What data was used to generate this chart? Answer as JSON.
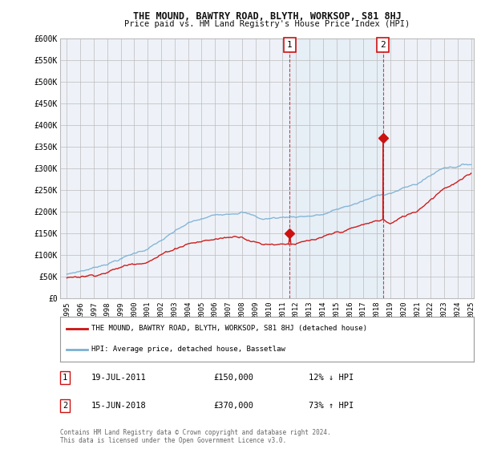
{
  "title": "THE MOUND, BAWTRY ROAD, BLYTH, WORKSOP, S81 8HJ",
  "subtitle": "Price paid vs. HM Land Registry's House Price Index (HPI)",
  "hpi_color": "#7ab0d4",
  "price_color": "#cc1111",
  "background_color": "#ffffff",
  "plot_bg_color": "#eef2f8",
  "shade_color": "#d8e8f5",
  "grid_color": "#bbbbbb",
  "ylim": [
    0,
    600000
  ],
  "yticks": [
    0,
    50000,
    100000,
    150000,
    200000,
    250000,
    300000,
    350000,
    400000,
    450000,
    500000,
    550000,
    600000
  ],
  "ytick_labels": [
    "£0",
    "£50K",
    "£100K",
    "£150K",
    "£200K",
    "£250K",
    "£300K",
    "£350K",
    "£400K",
    "£450K",
    "£500K",
    "£550K",
    "£600K"
  ],
  "xlim_start": 1994.5,
  "xlim_end": 2025.2,
  "sale1_x": 2011.54,
  "sale1_y": 150000,
  "sale2_x": 2018.46,
  "sale2_y": 370000,
  "legend_line1": "THE MOUND, BAWTRY ROAD, BLYTH, WORKSOP, S81 8HJ (detached house)",
  "legend_line2": "HPI: Average price, detached house, Bassetlaw",
  "sale1_date": "19-JUL-2011",
  "sale1_price": "£150,000",
  "sale1_hpi": "12% ↓ HPI",
  "sale2_date": "15-JUN-2018",
  "sale2_price": "£370,000",
  "sale2_hpi": "73% ↑ HPI",
  "footnote": "Contains HM Land Registry data © Crown copyright and database right 2024.\nThis data is licensed under the Open Government Licence v3.0."
}
